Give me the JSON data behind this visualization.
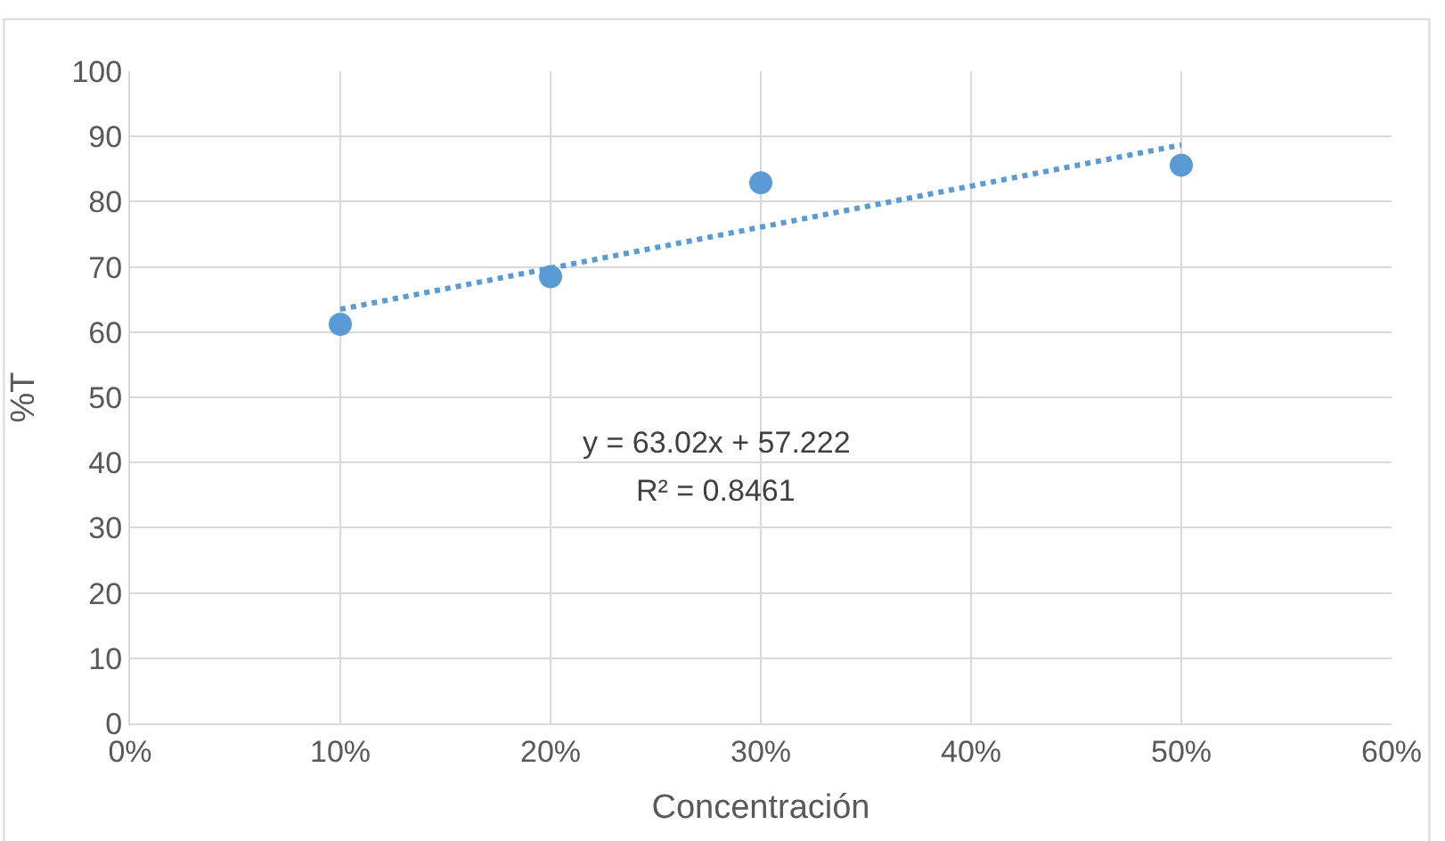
{
  "chart_data": {
    "type": "scatter",
    "xlabel": "Concentración",
    "ylabel": "%T",
    "series": [
      {
        "color": "#5b9bd5",
        "x": [
          0.1,
          0.2,
          0.3,
          0.5
        ],
        "values": [
          61.2,
          68.5,
          82.9,
          85.6
        ],
        "marker": "circle"
      },
      {
        "type": "line",
        "color": "#5b9bd5",
        "x": [
          0.1,
          0.5
        ],
        "values": [
          63.5,
          88.7
        ],
        "line_style": "dotted"
      }
    ],
    "xlim": [
      0,
      0.6
    ],
    "xticks": [
      {
        "value": 0,
        "label": "0%"
      },
      {
        "value": 0.1,
        "label": "10%"
      },
      {
        "value": 0.2,
        "label": "20%"
      },
      {
        "value": 0.3,
        "label": "30%"
      },
      {
        "value": 0.4,
        "label": "40%"
      },
      {
        "value": 0.5,
        "label": "50%"
      },
      {
        "value": 0.6,
        "label": "60%"
      }
    ],
    "ylim": [
      0,
      100
    ],
    "yticks": [
      0,
      10,
      20,
      30,
      40,
      50,
      60,
      70,
      80,
      90,
      100
    ],
    "grid": true,
    "annotations": [
      "y = 63.02x + 57.222",
      "R² = 0.8461"
    ]
  }
}
